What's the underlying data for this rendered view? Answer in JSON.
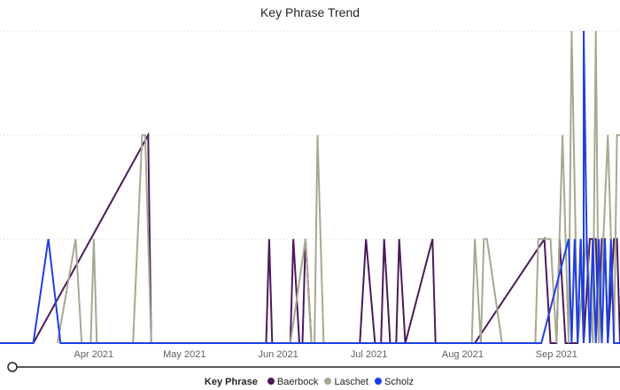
{
  "chart_data": {
    "type": "line",
    "title": "Key Phrase Trend",
    "legend_title": "Key Phrase",
    "legend_position": "bottom",
    "grid": true,
    "xlim": [
      "2021-03-01",
      "2021-09-22"
    ],
    "ylim": [
      0,
      3
    ],
    "x_ticks": [
      {
        "date": "2021-04-01",
        "label": "Apr 2021"
      },
      {
        "date": "2021-05-01",
        "label": "May 2021"
      },
      {
        "date": "2021-06-01",
        "label": "Jun 2021"
      },
      {
        "date": "2021-07-01",
        "label": "Jul 2021"
      },
      {
        "date": "2021-08-01",
        "label": "Aug 2021"
      },
      {
        "date": "2021-09-01",
        "label": "Sep 2021"
      }
    ],
    "series": [
      {
        "name": "Baerbock",
        "color": "#4b1a5c",
        "points": [
          [
            "2021-03-12",
            0
          ],
          [
            "2021-04-19",
            2
          ],
          [
            "2021-04-20",
            0
          ],
          [
            "2021-05-28",
            0
          ],
          [
            "2021-05-29",
            1
          ],
          [
            "2021-05-30",
            0
          ],
          [
            "2021-06-05",
            0
          ],
          [
            "2021-06-06",
            1
          ],
          [
            "2021-06-08",
            0
          ],
          [
            "2021-06-09",
            0
          ],
          [
            "2021-06-10",
            1
          ],
          [
            "2021-06-12",
            0
          ],
          [
            "2021-06-28",
            0
          ],
          [
            "2021-06-30",
            1
          ],
          [
            "2021-07-03",
            0
          ],
          [
            "2021-07-05",
            0
          ],
          [
            "2021-07-06",
            1
          ],
          [
            "2021-07-08",
            0
          ],
          [
            "2021-07-10",
            0
          ],
          [
            "2021-07-11",
            1
          ],
          [
            "2021-07-13",
            0
          ],
          [
            "2021-07-22",
            1
          ],
          [
            "2021-07-23",
            0
          ],
          [
            "2021-08-05",
            0
          ],
          [
            "2021-08-28",
            1
          ],
          [
            "2021-08-30",
            0
          ],
          [
            "2021-09-01",
            0
          ],
          [
            "2021-09-02",
            1
          ],
          [
            "2021-09-04",
            0
          ],
          [
            "2021-09-08",
            0
          ],
          [
            "2021-09-09",
            1
          ],
          [
            "2021-09-10",
            0
          ],
          [
            "2021-09-12",
            1
          ],
          [
            "2021-09-14",
            1
          ],
          [
            "2021-09-15",
            0
          ],
          [
            "2021-09-16",
            1
          ],
          [
            "2021-09-17",
            1
          ],
          [
            "2021-09-18",
            0
          ],
          [
            "2021-09-20",
            1
          ],
          [
            "2021-09-21",
            1
          ],
          [
            "2021-09-22",
            0
          ]
        ]
      },
      {
        "name": "Laschet",
        "color": "#a8a891",
        "points": [
          [
            "2021-03-20",
            0
          ],
          [
            "2021-03-26",
            1
          ],
          [
            "2021-03-28",
            0
          ],
          [
            "2021-03-31",
            0
          ],
          [
            "2021-04-01",
            1
          ],
          [
            "2021-04-02",
            0
          ],
          [
            "2021-04-14",
            0
          ],
          [
            "2021-04-17",
            2
          ],
          [
            "2021-04-18",
            2
          ],
          [
            "2021-04-20",
            0
          ],
          [
            "2021-06-05",
            0
          ],
          [
            "2021-06-10",
            1
          ],
          [
            "2021-06-12",
            0
          ],
          [
            "2021-06-13",
            0
          ],
          [
            "2021-06-14",
            2
          ],
          [
            "2021-06-16",
            0
          ],
          [
            "2021-08-04",
            0
          ],
          [
            "2021-08-05",
            1
          ],
          [
            "2021-08-07",
            0
          ],
          [
            "2021-08-08",
            1
          ],
          [
            "2021-08-09",
            1
          ],
          [
            "2021-08-14",
            0
          ],
          [
            "2021-08-25",
            0
          ],
          [
            "2021-08-26",
            1
          ],
          [
            "2021-08-30",
            1
          ],
          [
            "2021-09-01",
            0
          ],
          [
            "2021-09-03",
            2
          ],
          [
            "2021-09-05",
            0
          ],
          [
            "2021-09-06",
            3
          ],
          [
            "2021-09-08",
            0
          ],
          [
            "2021-09-11",
            1
          ],
          [
            "2021-09-13",
            0
          ],
          [
            "2021-09-14",
            3
          ],
          [
            "2021-09-15",
            0
          ],
          [
            "2021-09-18",
            2
          ],
          [
            "2021-09-20",
            0
          ],
          [
            "2021-09-21",
            2
          ],
          [
            "2021-09-22",
            2
          ]
        ]
      },
      {
        "name": "Scholz",
        "color": "#1e3fe0",
        "points": [
          [
            "2021-03-01",
            0
          ],
          [
            "2021-03-12",
            0
          ],
          [
            "2021-03-17",
            1
          ],
          [
            "2021-03-21",
            0
          ],
          [
            "2021-08-27",
            0
          ],
          [
            "2021-09-05",
            1
          ],
          [
            "2021-09-06",
            0
          ],
          [
            "2021-09-07",
            1
          ],
          [
            "2021-09-08",
            0
          ],
          [
            "2021-09-09",
            1
          ],
          [
            "2021-09-10",
            0
          ],
          [
            "2021-09-10",
            3
          ],
          [
            "2021-09-11",
            1
          ],
          [
            "2021-09-12",
            0
          ],
          [
            "2021-09-13",
            1
          ],
          [
            "2021-09-14",
            0
          ],
          [
            "2021-09-15",
            1
          ],
          [
            "2021-09-16",
            0
          ],
          [
            "2021-09-17",
            1
          ],
          [
            "2021-09-18",
            0
          ],
          [
            "2021-09-19",
            1
          ],
          [
            "2021-09-20",
            0
          ],
          [
            "2021-09-21",
            0
          ],
          [
            "2021-09-22",
            0
          ]
        ]
      }
    ]
  }
}
